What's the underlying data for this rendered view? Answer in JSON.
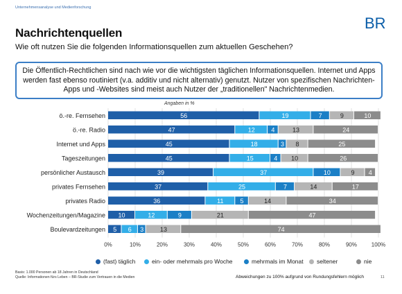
{
  "header": {
    "label": "Unternehmensanalyse und Medienforschung",
    "logo_text": "BR"
  },
  "title": "Nachrichtenquellen",
  "subtitle": "Wie oft nutzen Sie die folgenden Informationsquellen zum aktuellen Geschehen?",
  "callout": {
    "line1": "Die Öffentlich-Rechtlichen sind nach wie vor die wichtigsten täglichen Informationsquellen. Internet und Apps",
    "line2": "werden fast ebenso routiniert (v.a. additiv und nicht alternativ) genutzt. Nutzer von spezifischen Nachrichten-",
    "line3": "Apps und -Websites sind meist auch Nutzer der „traditionellen\" Nachrichtenmedien."
  },
  "footer": {
    "basis": "Basis: 1.000 Personen ab 18 Jahren in Deutschland",
    "source": "Quelle: Informationen fürs Leben – BR-Studie zum Vertrauen in die Medien",
    "deviation_note": "Abweichungen zu 100% aufgrund von Rundungsfehlern möglich",
    "page_number": "11"
  },
  "colors": {
    "brand": "#0a5da8",
    "series": [
      "#1f5fa8",
      "#33aee8",
      "#1b7fc6",
      "#b5b5b5",
      "#8c8c8c"
    ]
  },
  "chart_data": {
    "type": "bar",
    "orientation": "horizontal",
    "stacked": true,
    "unit_label": "Angaben in %",
    "categories": [
      "ö.-re. Fernsehen",
      "ö.-re. Radio",
      "Internet und Apps",
      "Tageszeitungen",
      "persönlicher Austausch",
      "privates Fernsehen",
      "privates Radio",
      "Wochenzeitungen/Magazine",
      "Boulevardzeitungen"
    ],
    "series": [
      {
        "name": "(fast) täglich",
        "values": [
          56,
          47,
          45,
          45,
          39,
          37,
          36,
          10,
          5
        ]
      },
      {
        "name": "ein- oder mehrmals pro Woche",
        "values": [
          19,
          12,
          18,
          15,
          37,
          25,
          11,
          12,
          6
        ]
      },
      {
        "name": "mehrmals im Monat",
        "values": [
          7,
          4,
          3,
          4,
          10,
          7,
          5,
          9,
          3
        ]
      },
      {
        "name": "seltener",
        "values": [
          9,
          13,
          8,
          10,
          9,
          14,
          14,
          21,
          13
        ]
      },
      {
        "name": "nie",
        "values": [
          10,
          24,
          25,
          26,
          4,
          17,
          34,
          47,
          74
        ]
      }
    ],
    "xlim": [
      0,
      100
    ],
    "xticks": [
      "0%",
      "10%",
      "20%",
      "30%",
      "40%",
      "50%",
      "60%",
      "70%",
      "80%",
      "90%",
      "100%"
    ],
    "grid": true,
    "legend_position": "bottom"
  }
}
